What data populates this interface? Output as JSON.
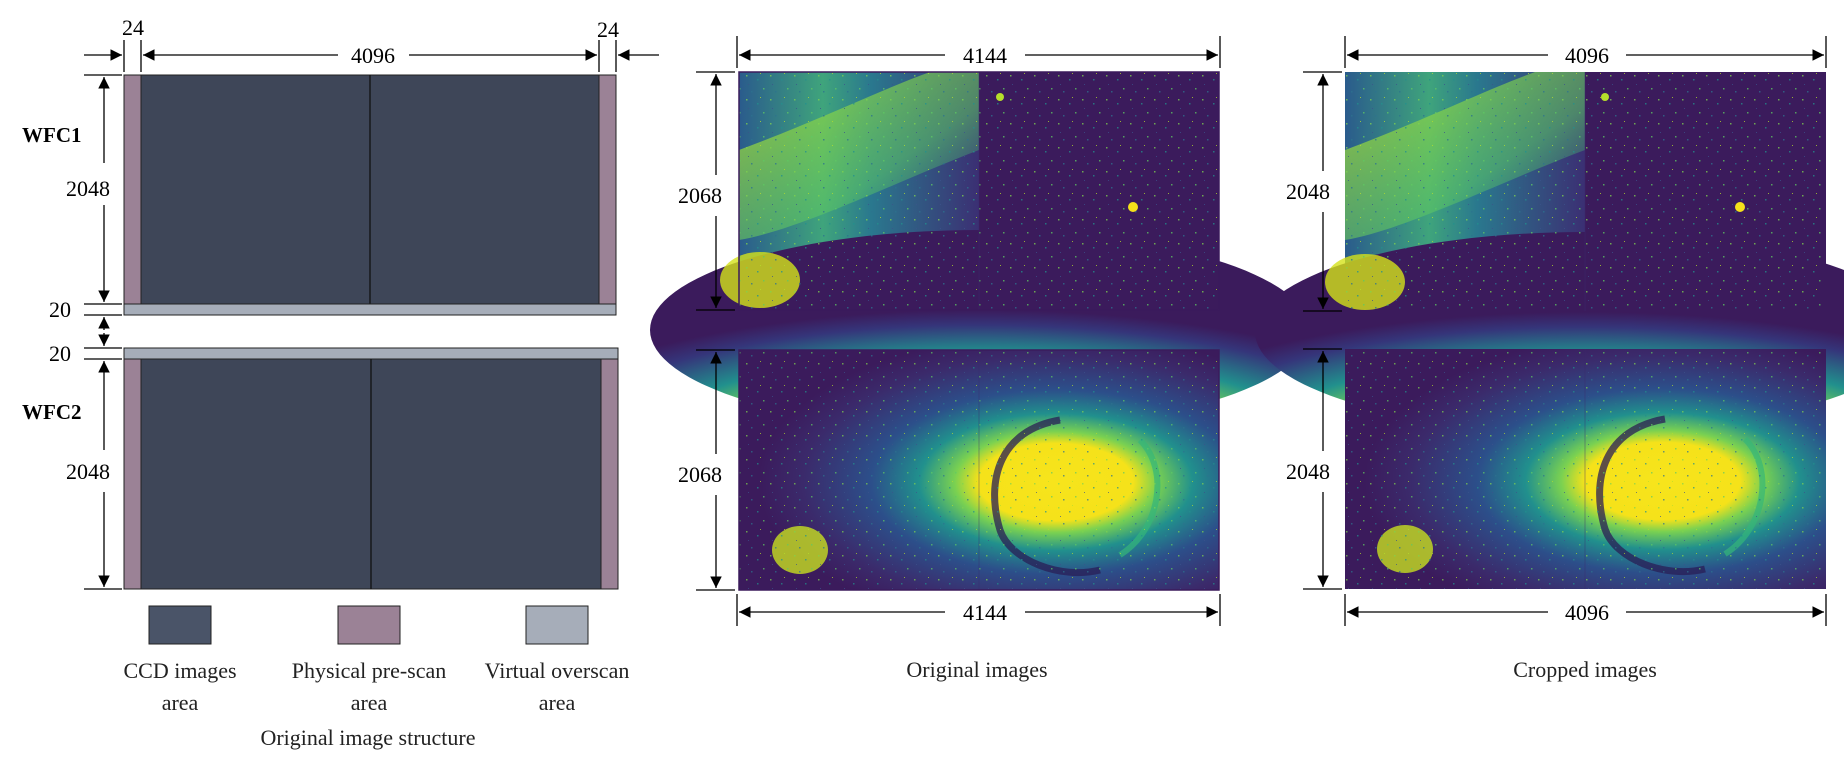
{
  "left_panel": {
    "top_prescan_width": "24",
    "top_overscan_width": "24",
    "width_label": "4096",
    "chip1_label": "WFC1",
    "chip2_label": "WFC2",
    "chip1_height": "2048",
    "chip2_height": "2048",
    "gap_top": "20",
    "gap_bottom": "20",
    "caption": "Original image structure"
  },
  "legend": [
    {
      "name": "ccd",
      "label_line1": "CCD images",
      "label_line2": "area",
      "color": "#4a5468"
    },
    {
      "name": "prescan",
      "label_line1": "Physical pre-scan",
      "label_line2": "area",
      "color": "#9b8296"
    },
    {
      "name": "overscan",
      "label_line1": "Virtual overscan",
      "label_line2": "area",
      "color": "#a6adb9"
    }
  ],
  "middle_panel": {
    "top_width": "4144",
    "bottom_width": "4144",
    "top_height": "2068",
    "bottom_height": "2068",
    "caption": "Original images"
  },
  "right_panel": {
    "top_width": "4096",
    "bottom_width": "4096",
    "top_height": "2048",
    "bottom_height": "2048",
    "caption": "Cropped images"
  },
  "colors": {
    "ccd": "#3e4658",
    "prescan": "#9b8296",
    "overscan": "#a6adb9",
    "viridis_dark": "#3b1b5c",
    "viridis_mid": "#2e6f8e",
    "viridis_green": "#35b779",
    "viridis_yellow": "#f5e21a"
  }
}
